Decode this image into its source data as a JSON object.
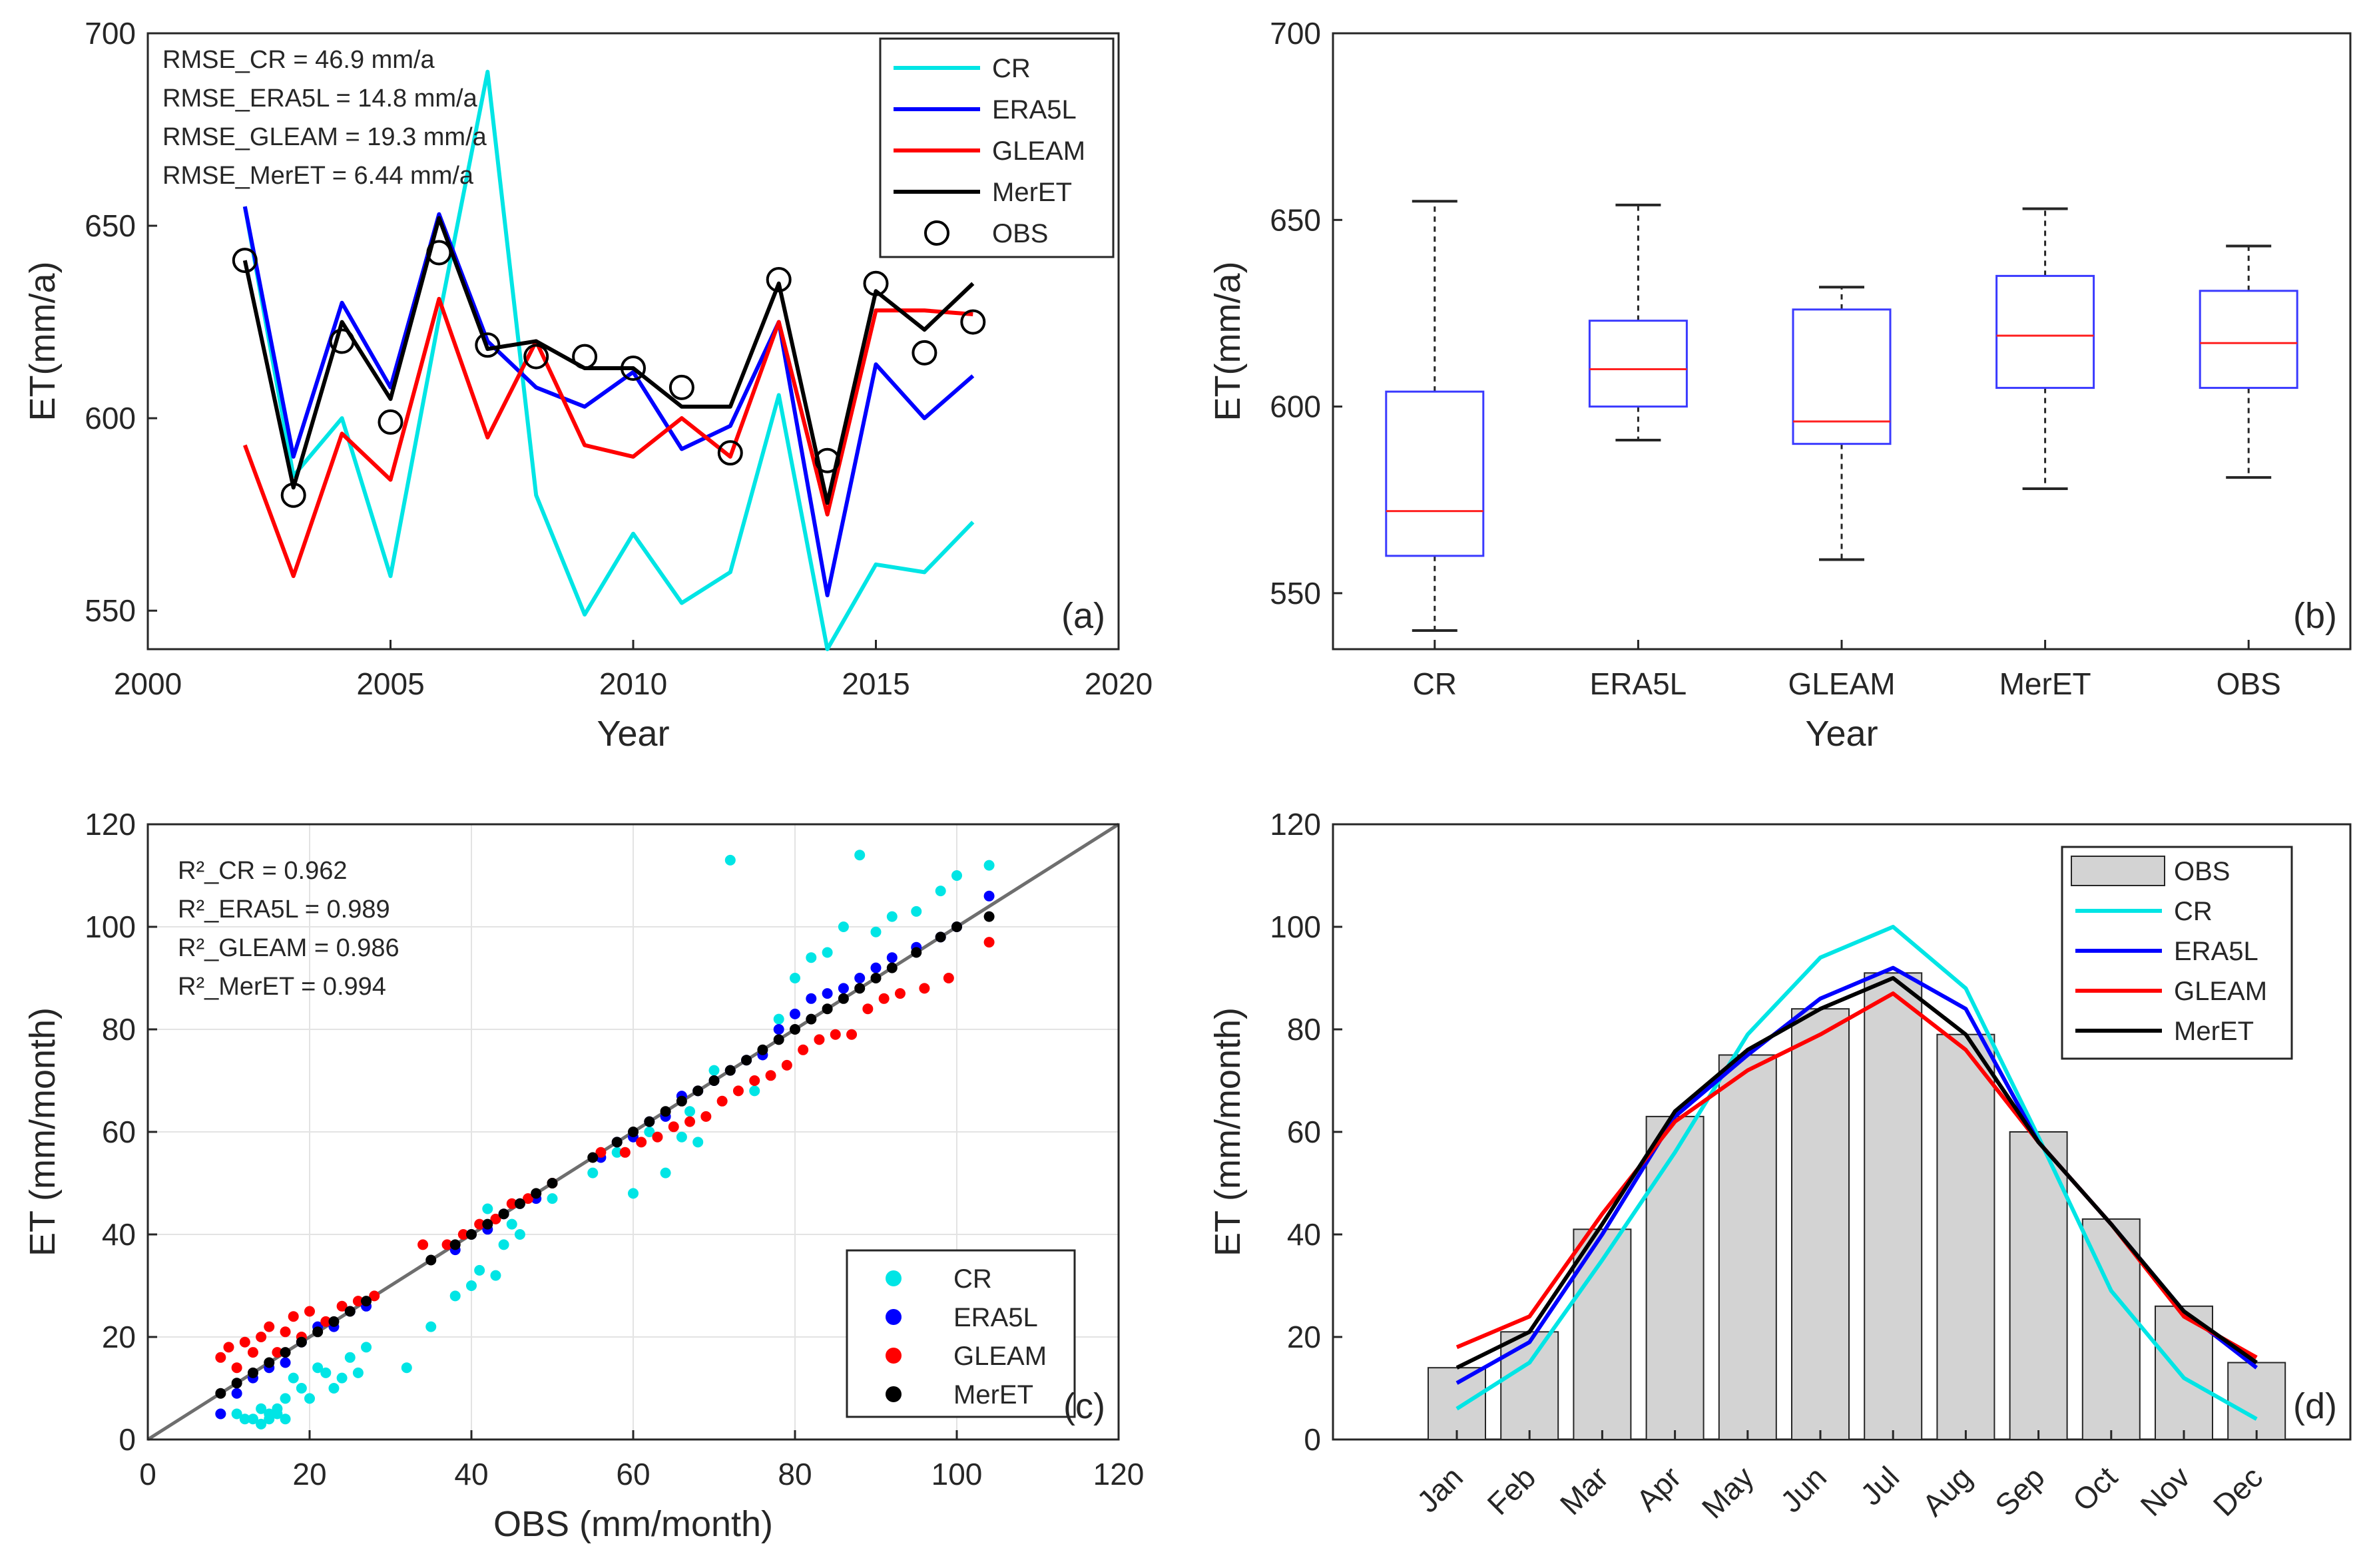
{
  "chart_data": [
    {
      "id": "a",
      "type": "line",
      "panel_label": "(a)",
      "xlabel": "Year",
      "ylabel": "ET(mm/a)",
      "xlim": [
        2000,
        2020
      ],
      "ylim": [
        540,
        700
      ],
      "xticks": [
        2000,
        2005,
        2010,
        2015,
        2020
      ],
      "yticks": [
        550,
        600,
        650,
        700
      ],
      "x": [
        2002,
        2003,
        2004,
        2005,
        2006,
        2007,
        2008,
        2009,
        2010,
        2011,
        2012,
        2013,
        2014,
        2015,
        2016,
        2017
      ],
      "series": [
        {
          "name": "CR",
          "color": "#00e5e5",
          "style": "line",
          "values": [
            655,
            585,
            600,
            559,
            626,
            690,
            580,
            549,
            570,
            552,
            560,
            606,
            540,
            562,
            560,
            573
          ]
        },
        {
          "name": "ERA5L",
          "color": "#0000ff",
          "style": "line",
          "values": [
            655,
            590,
            630,
            608,
            653,
            620,
            608,
            603,
            612,
            592,
            598,
            625,
            554,
            614,
            600,
            611
          ]
        },
        {
          "name": "GLEAM",
          "color": "#ff0000",
          "style": "line",
          "values": [
            593,
            559,
            596,
            584,
            631,
            595,
            620,
            593,
            590,
            600,
            590,
            625,
            575,
            628,
            628,
            627
          ]
        },
        {
          "name": "MerET",
          "color": "#000000",
          "style": "line",
          "values": [
            641,
            582,
            625,
            605,
            652,
            618,
            620,
            613,
            613,
            603,
            603,
            635,
            578,
            633,
            623,
            635
          ]
        },
        {
          "name": "OBS",
          "color": "#000000",
          "style": "circle",
          "values": [
            641,
            580,
            620,
            599,
            643,
            619,
            616,
            616,
            613,
            608,
            591,
            636,
            589,
            635,
            617,
            625
          ]
        }
      ],
      "annotations": [
        "RMSE_CR = 46.9 mm/a",
        "RMSE_ERA5L = 14.8 mm/a",
        "RMSE_GLEAM = 19.3 mm/a",
        "RMSE_MerET = 6.44 mm/a"
      ],
      "legend_location": "top-right"
    },
    {
      "id": "b",
      "type": "box",
      "panel_label": "(b)",
      "xlabel": "Year",
      "ylabel": "ET(mm/a)",
      "ylim": [
        535,
        700
      ],
      "yticks": [
        550,
        600,
        650,
        700
      ],
      "categories": [
        "CR",
        "ERA5L",
        "GLEAM",
        "MerET",
        "OBS"
      ],
      "boxes": [
        {
          "name": "CR",
          "min": 540,
          "q1": 560,
          "median": 572,
          "q3": 604,
          "max": 655
        },
        {
          "name": "ERA5L",
          "min": 591,
          "q1": 600,
          "median": 610,
          "q3": 623,
          "max": 654
        },
        {
          "name": "GLEAM",
          "min": 559,
          "q1": 590,
          "median": 596,
          "q3": 626,
          "max": 632
        },
        {
          "name": "MerET",
          "min": 578,
          "q1": 605,
          "median": 619,
          "q3": 635,
          "max": 653
        },
        {
          "name": "OBS",
          "min": 581,
          "q1": 605,
          "median": 617,
          "q3": 631,
          "max": 643
        }
      ]
    },
    {
      "id": "c",
      "type": "scatter",
      "panel_label": "(c)",
      "xlabel": "OBS (mm/month)",
      "ylabel": "ET (mm/month)",
      "xlim": [
        0,
        120
      ],
      "ylim": [
        0,
        120
      ],
      "xticks": [
        0,
        20,
        40,
        60,
        80,
        100,
        120
      ],
      "yticks": [
        0,
        20,
        40,
        60,
        80,
        100,
        120
      ],
      "one_to_one_line": true,
      "series": [
        {
          "name": "CR",
          "color": "#00e5e5",
          "x": [
            9,
            11,
            12,
            13,
            14,
            14,
            15,
            15,
            16,
            16,
            17,
            17,
            18,
            19,
            20,
            21,
            22,
            23,
            24,
            25,
            26,
            27,
            32,
            35,
            38,
            40,
            41,
            42,
            43,
            44,
            45,
            46,
            50,
            55,
            58,
            60,
            62,
            64,
            66,
            67,
            68,
            70,
            72,
            75,
            78,
            80,
            82,
            84,
            86,
            88,
            90,
            92,
            95,
            98,
            100,
            104
          ],
          "y": [
            5,
            5,
            4,
            4,
            6,
            3,
            5,
            4,
            5,
            6,
            4,
            8,
            12,
            10,
            8,
            14,
            13,
            10,
            12,
            16,
            13,
            18,
            14,
            22,
            28,
            30,
            33,
            45,
            32,
            38,
            42,
            40,
            47,
            52,
            56,
            48,
            60,
            52,
            59,
            64,
            58,
            72,
            113,
            68,
            82,
            90,
            94,
            95,
            100,
            114,
            99,
            102,
            103,
            107,
            110,
            112
          ]
        },
        {
          "name": "ERA5L",
          "color": "#0000ff",
          "x": [
            9,
            11,
            13,
            15,
            17,
            19,
            21,
            23,
            25,
            27,
            38,
            40,
            42,
            44,
            46,
            48,
            56,
            58,
            60,
            62,
            64,
            66,
            68,
            70,
            72,
            74,
            76,
            78,
            80,
            82,
            84,
            86,
            88,
            90,
            92,
            95,
            98,
            100,
            104
          ],
          "y": [
            5,
            9,
            12,
            14,
            15,
            19,
            22,
            22,
            25,
            26,
            37,
            40,
            41,
            44,
            46,
            47,
            55,
            58,
            59,
            62,
            63,
            67,
            68,
            70,
            72,
            74,
            75,
            80,
            83,
            86,
            87,
            88,
            90,
            92,
            94,
            96,
            98,
            100,
            106
          ]
        },
        {
          "name": "GLEAM",
          "color": "#ff0000",
          "x": [
            9,
            10,
            11,
            12,
            13,
            14,
            15,
            16,
            17,
            18,
            19,
            20,
            22,
            24,
            26,
            28,
            34,
            37,
            39,
            41,
            43,
            45,
            47,
            50,
            56,
            59,
            61,
            63,
            65,
            67,
            69,
            71,
            73,
            75,
            77,
            79,
            81,
            83,
            85,
            87,
            89,
            91,
            93,
            96,
            99,
            104
          ],
          "y": [
            16,
            18,
            14,
            19,
            17,
            20,
            22,
            17,
            21,
            24,
            20,
            25,
            23,
            26,
            27,
            28,
            38,
            38,
            40,
            42,
            43,
            46,
            47,
            50,
            56,
            56,
            58,
            59,
            61,
            62,
            63,
            66,
            68,
            70,
            71,
            73,
            76,
            78,
            79,
            79,
            84,
            86,
            87,
            88,
            90,
            97
          ]
        },
        {
          "name": "MerET",
          "color": "#000000",
          "x": [
            9,
            11,
            13,
            15,
            17,
            19,
            21,
            23,
            25,
            27,
            35,
            38,
            40,
            42,
            44,
            46,
            48,
            50,
            55,
            58,
            60,
            62,
            64,
            66,
            68,
            70,
            72,
            74,
            76,
            78,
            80,
            82,
            84,
            86,
            88,
            90,
            92,
            95,
            98,
            100,
            104
          ],
          "y": [
            9,
            11,
            13,
            15,
            17,
            19,
            21,
            23,
            25,
            27,
            35,
            38,
            40,
            42,
            44,
            46,
            48,
            50,
            55,
            58,
            60,
            62,
            64,
            66,
            68,
            70,
            72,
            74,
            76,
            78,
            80,
            82,
            84,
            86,
            88,
            90,
            92,
            95,
            98,
            100,
            102
          ]
        }
      ],
      "annotations": [
        "R²_CR = 0.962",
        "R²_ERA5L = 0.989",
        "R²_GLEAM = 0.986",
        "R²_MerET = 0.994"
      ],
      "legend_location": "bottom-right"
    },
    {
      "id": "d",
      "type": "bar",
      "panel_label": "(d)",
      "xlabel": "",
      "ylabel": "ET (mm/month)",
      "ylim": [
        0,
        120
      ],
      "yticks": [
        0,
        20,
        40,
        60,
        80,
        100,
        120
      ],
      "categories": [
        "Jan",
        "Feb",
        "Mar",
        "Apr",
        "May",
        "Jun",
        "Jul",
        "Aug",
        "Sep",
        "Oct",
        "Nov",
        "Dec"
      ],
      "bars": {
        "name": "OBS",
        "color": "#d3d3d3",
        "values": [
          14,
          21,
          41,
          63,
          75,
          84,
          91,
          79,
          60,
          43,
          26,
          15
        ]
      },
      "series": [
        {
          "name": "CR",
          "color": "#00e5e5",
          "values": [
            6,
            15,
            35,
            56,
            79,
            94,
            100,
            88,
            59,
            29,
            12,
            4
          ]
        },
        {
          "name": "ERA5L",
          "color": "#0000ff",
          "values": [
            11,
            19,
            40,
            63,
            75,
            86,
            92,
            84,
            58,
            42,
            25,
            14
          ]
        },
        {
          "name": "GLEAM",
          "color": "#ff0000",
          "values": [
            18,
            24,
            44,
            62,
            72,
            79,
            87,
            76,
            58,
            42,
            24,
            16
          ]
        },
        {
          "name": "MerET",
          "color": "#000000",
          "values": [
            14,
            21,
            42,
            64,
            76,
            84,
            90,
            79,
            58,
            42,
            25,
            15
          ]
        }
      ],
      "legend_location": "top-right"
    }
  ]
}
